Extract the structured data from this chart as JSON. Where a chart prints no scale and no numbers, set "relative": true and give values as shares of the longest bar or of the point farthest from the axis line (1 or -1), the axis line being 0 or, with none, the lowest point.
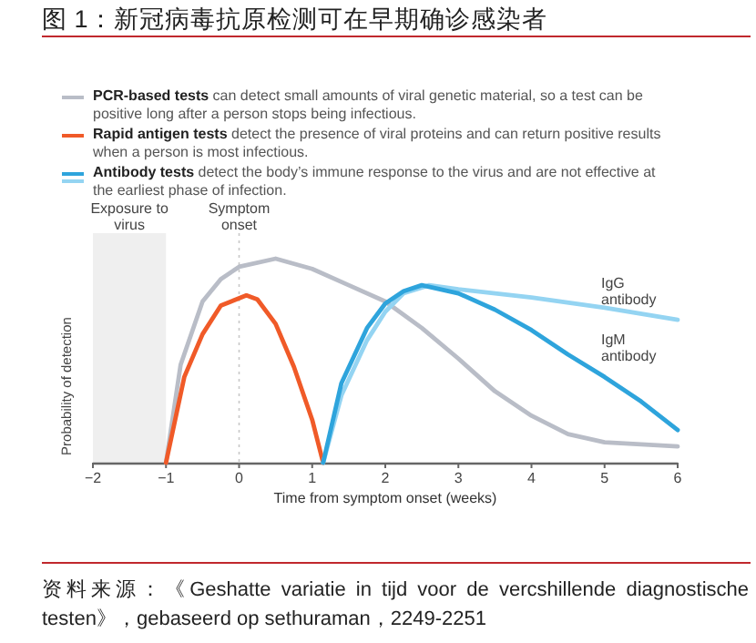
{
  "chart_data": {
    "type": "line",
    "title": "图 1：新冠病毒抗原检测可在早期确诊感染者",
    "xlabel": "Time from symptom onset (weeks)",
    "ylabel": "Probability of detection",
    "relative": true,
    "xlim": [
      -2,
      6
    ],
    "xticks": [
      {
        "value": -2,
        "label": "−2"
      },
      {
        "value": -1,
        "label": "−1"
      },
      0,
      1,
      2,
      3,
      4,
      5,
      6
    ],
    "grid": false,
    "legend": "top",
    "marker": "none",
    "line_style": "solid",
    "series": [
      {
        "name": "**PCR-based tests** can detect small amounts of viral genetic material, so a test can be positive long after a person stops being infectious.",
        "color": "#b9bdc7",
        "x": [
          -1,
          -0.8,
          -0.5,
          -0.25,
          0,
          0.5,
          1,
          1.5,
          2,
          2.5,
          3,
          3.5,
          4,
          4.5,
          5,
          5.5,
          6
        ],
        "values": [
          0,
          0.48,
          0.79,
          0.9,
          0.96,
          1,
          0.95,
          0.87,
          0.79,
          0.66,
          0.51,
          0.35,
          0.23,
          0.14,
          0.1,
          0.09,
          0.08
        ]
      },
      {
        "name": "**Rapid antigen tests** detect the presence of viral proteins and can return positive results when a person is most infectious.",
        "color": "#f05a28",
        "x": [
          -1,
          -0.75,
          -0.5,
          -0.25,
          0.1,
          0.25,
          0.5,
          0.75,
          1,
          1.15
        ],
        "values": [
          0,
          0.42,
          0.63,
          0.77,
          0.82,
          0.8,
          0.68,
          0.47,
          0.21,
          0
        ]
      },
      {
        "name": "IgG antibody",
        "color": "#94d4f2",
        "x": [
          1.15,
          1.4,
          1.75,
          2,
          2.25,
          2.6,
          3,
          4,
          5,
          6
        ],
        "values": [
          0,
          0.33,
          0.6,
          0.74,
          0.83,
          0.87,
          0.85,
          0.81,
          0.76,
          0.7
        ]
      },
      {
        "name": "IgM antibody",
        "color": "#2ea4dc",
        "x": [
          1.15,
          1.4,
          1.75,
          2,
          2.25,
          2.5,
          3,
          3.5,
          4,
          4.5,
          5,
          5.5,
          6
        ],
        "values": [
          0,
          0.39,
          0.66,
          0.78,
          0.84,
          0.87,
          0.83,
          0.75,
          0.65,
          0.53,
          0.42,
          0.3,
          0.16
        ]
      }
    ],
    "ref_lines": [
      {
        "axis": "x",
        "value": 0,
        "label": "Symptom onset",
        "line_style": "dotted",
        "color": "#c8c8c8"
      }
    ],
    "bands": [
      {
        "axis": "x",
        "from": -2,
        "to": -1,
        "label": "Exposure to virus",
        "color": "#efefef"
      }
    ],
    "annotations": [
      "**Antibody tests** detect the body’s immune response to the virus and are not effective at the earliest phase of infection.",
      "资料来源：《Geshatte variatie in tijd voor de vercshillende diagnostische testen》，gebaseerd op sethuraman，2249-2251"
    ]
  }
}
